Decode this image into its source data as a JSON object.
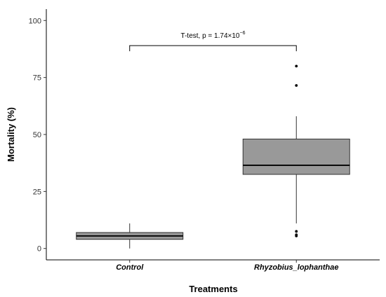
{
  "chart_data": {
    "type": "boxplot",
    "xlabel": "Treatments",
    "ylabel": "Mortality (%)",
    "ylim": [
      -5,
      105
    ],
    "yticks": [
      0,
      25,
      50,
      75,
      100
    ],
    "grid": false,
    "categories": [
      "Control",
      "Rhyzobius_lophanthae"
    ],
    "boxes": [
      {
        "category": "Control",
        "whisker_low": 0,
        "q1": 4,
        "median": 5.5,
        "q3": 7,
        "whisker_high": 11,
        "outliers": []
      },
      {
        "category": "Rhyzobius_lophanthae",
        "whisker_low": 11,
        "q1": 32.5,
        "median": 36.5,
        "q3": 48,
        "whisker_high": 58,
        "outliers": [
          80,
          71.5,
          7.5,
          6,
          5.5
        ]
      }
    ],
    "box_fill": "#999999",
    "annotation": {
      "text_prefix": "T-test, p = 1.74×10",
      "exponent": "−6"
    }
  }
}
